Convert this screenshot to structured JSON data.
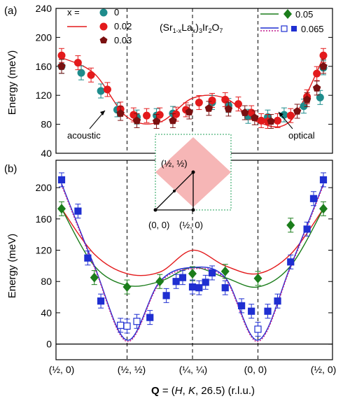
{
  "figure": {
    "title_parts": {
      "open": "(Sr",
      "sub1": "1-x",
      "mid": "La",
      "sub2": "x",
      "mid2": ")",
      "sub3": "3",
      "rest": "Ir",
      "sub4": "2",
      "o": "O",
      "sub5": "7"
    },
    "xlabel": {
      "q": "Q",
      "eq": " = (",
      "h": "H",
      "c1": ", ",
      "k": "K",
      "rest": ", 26.5) (r.l.u.)"
    },
    "x_tick_labels": [
      "(½, 0)",
      "(½, ½)",
      "(¼, ¼)",
      "(0, 0)",
      "(½, 0)"
    ]
  },
  "chart_data": [
    {
      "panel_label": "(a)",
      "type": "scatter",
      "ylabel": "Energy (meV)",
      "ylim": [
        40,
        240
      ],
      "yticks": [
        40,
        80,
        120,
        160,
        200,
        240
      ],
      "xlim": [
        0,
        4
      ],
      "legend_prefix": "x =",
      "annotations": {
        "acoustic": "acoustic",
        "optical": "optical"
      },
      "series": [
        {
          "name": "0",
          "color": "#1e8c8c",
          "marker": "circle",
          "points": [
            [
              0.0,
              160
            ],
            [
              0.3,
              151
            ],
            [
              0.6,
              126
            ],
            [
              0.85,
              100
            ],
            [
              1.15,
              90
            ],
            [
              1.45,
              92
            ],
            [
              1.7,
              95
            ],
            [
              2.3,
              110
            ],
            [
              2.55,
              106
            ],
            [
              2.85,
              91
            ],
            [
              3.15,
              90
            ],
            [
              3.4,
              93
            ],
            [
              3.7,
              105
            ],
            [
              3.95,
              117
            ],
            [
              4.0,
              158
            ]
          ]
        },
        {
          "name": "0.02",
          "color": "#e31a1c",
          "marker": "circle",
          "points": [
            [
              0.0,
              175
            ],
            [
              0.25,
              165
            ],
            [
              0.45,
              148
            ],
            [
              0.7,
              128
            ],
            [
              0.9,
              101
            ],
            [
              1.1,
              93
            ],
            [
              1.3,
              92
            ],
            [
              1.5,
              93
            ],
            [
              1.75,
              94
            ],
            [
              1.9,
              100
            ],
            [
              2.1,
              110
            ],
            [
              2.3,
              113
            ],
            [
              2.5,
              114
            ],
            [
              2.7,
              108
            ],
            [
              2.9,
              96
            ],
            [
              3.05,
              85
            ],
            [
              3.15,
              84
            ],
            [
              3.3,
              85
            ],
            [
              3.5,
              92
            ],
            [
              3.75,
              118
            ],
            [
              3.9,
              150
            ],
            [
              4.0,
              175
            ]
          ]
        },
        {
          "name": "0.03",
          "color": "#7a1010",
          "marker": "pentagon",
          "points": [
            [
              0.0,
              160
            ],
            [
              0.9,
              95
            ],
            [
              1.15,
              85
            ],
            [
              1.45,
              84
            ],
            [
              1.7,
              85
            ],
            [
              1.95,
              97
            ],
            [
              2.25,
              102
            ],
            [
              2.55,
              101
            ],
            [
              2.8,
              96
            ],
            [
              2.95,
              89
            ],
            [
              3.2,
              84
            ],
            [
              3.6,
              98
            ],
            [
              3.75,
              114
            ],
            [
              3.9,
              130
            ],
            [
              4.0,
              160
            ]
          ]
        }
      ],
      "curves": [
        {
          "name": "0.02",
          "color": "#e31a1c",
          "points": [
            [
              0.0,
              172
            ],
            [
              0.5,
              150
            ],
            [
              1.0,
              90
            ],
            [
              1.5,
              83
            ],
            [
              2.0,
              116
            ],
            [
              2.5,
              116
            ],
            [
              3.0,
              83
            ],
            [
              3.5,
              85
            ],
            [
              4.0,
              172
            ]
          ]
        }
      ]
    },
    {
      "panel_label": "(b)",
      "type": "scatter",
      "ylabel": "Energy (meV)",
      "ylim": [
        -20,
        235
      ],
      "yticks": [
        0,
        40,
        80,
        120,
        160,
        200
      ],
      "xlim": [
        0,
        4
      ],
      "inset": {
        "labels": [
          "(½, ½)",
          "(0, 0)",
          "(½, 0)"
        ]
      },
      "series": [
        {
          "name": "0.05",
          "color": "#1b7d1b",
          "marker": "diamond",
          "points": [
            [
              0.0,
              173
            ],
            [
              0.5,
              85
            ],
            [
              1.0,
              73
            ],
            [
              1.5,
              80
            ],
            [
              2.0,
              90
            ],
            [
              2.5,
              93
            ],
            [
              3.0,
              84
            ],
            [
              3.5,
              152
            ],
            [
              4.0,
              173
            ]
          ]
        },
        {
          "name": "0.065",
          "color": "#1f2fd1",
          "marker": "square",
          "points": [
            [
              0.0,
              210
            ],
            [
              0.25,
              170
            ],
            [
              0.4,
              110
            ],
            [
              0.6,
              55
            ],
            [
              0.9,
              24
            ],
            [
              1.0,
              23
            ],
            [
              1.15,
              29
            ],
            [
              1.35,
              34
            ],
            [
              1.6,
              62
            ],
            [
              1.75,
              80
            ],
            [
              1.85,
              85
            ],
            [
              2.0,
              73
            ],
            [
              2.1,
              72
            ],
            [
              2.2,
              79
            ],
            [
              2.3,
              91
            ],
            [
              2.5,
              72
            ],
            [
              2.75,
              49
            ],
            [
              2.9,
              42
            ],
            [
              3.0,
              19
            ],
            [
              3.15,
              42
            ],
            [
              3.3,
              55
            ],
            [
              3.5,
              105
            ],
            [
              3.75,
              147
            ],
            [
              3.85,
              186
            ],
            [
              4.0,
              210
            ]
          ]
        }
      ],
      "curves": [
        {
          "name": "0.02",
          "color": "#e31a1c",
          "points": [
            [
              0.0,
              173
            ],
            [
              0.5,
              115
            ],
            [
              1.0,
              90
            ],
            [
              1.5,
              92
            ],
            [
              2.0,
              120
            ],
            [
              2.5,
              100
            ],
            [
              3.0,
              90
            ],
            [
              3.5,
              115
            ],
            [
              4.0,
              173
            ]
          ]
        },
        {
          "name": "0.05",
          "color": "#1b7d1b",
          "points": [
            [
              0.0,
              173
            ],
            [
              0.5,
              100
            ],
            [
              1.0,
              75
            ],
            [
              1.5,
              80
            ],
            [
              2.0,
              98
            ],
            [
              2.5,
              85
            ],
            [
              3.0,
              73
            ],
            [
              3.5,
              100
            ],
            [
              4.0,
              173
            ]
          ]
        },
        {
          "name": "0.065",
          "color": "#1f2fd1",
          "points": [
            [
              0.0,
              205
            ],
            [
              0.5,
              100
            ],
            [
              1.0,
              5
            ],
            [
              1.5,
              80
            ],
            [
              2.0,
              98
            ],
            [
              2.5,
              85
            ],
            [
              3.0,
              5
            ],
            [
              3.5,
              100
            ],
            [
              4.0,
              205
            ]
          ]
        }
      ]
    }
  ]
}
